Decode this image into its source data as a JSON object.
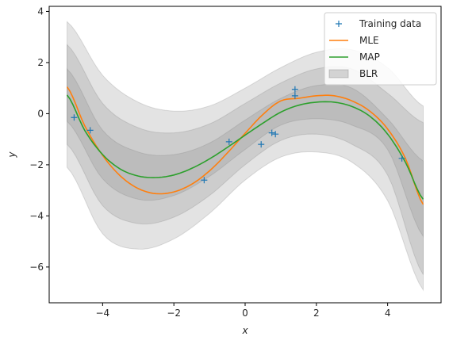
{
  "chart_data": {
    "type": "line",
    "title": "",
    "xlabel": "x",
    "ylabel": "y",
    "xlim": [
      -5.5,
      5.5
    ],
    "ylim": [
      -7.4,
      4.2
    ],
    "xticks": [
      -4,
      -2,
      0,
      2,
      4
    ],
    "yticks": [
      4,
      2,
      0,
      -2,
      -4,
      -6
    ],
    "xtick_labels": [
      "−4",
      "−2",
      "0",
      "2",
      "4"
    ],
    "ytick_labels": [
      "4",
      "2",
      "0",
      "−2",
      "−4",
      "−6"
    ],
    "grid": false,
    "legend_position": "top-right",
    "series": [
      {
        "name": "Training data",
        "kind": "scatter",
        "marker": "+",
        "color": "#1f77b4",
        "points": [
          [
            -4.8,
            -0.15
          ],
          [
            -4.35,
            -0.65
          ],
          [
            -1.15,
            -2.6
          ],
          [
            -0.45,
            -1.1
          ],
          [
            0.45,
            -1.2
          ],
          [
            0.75,
            -0.75
          ],
          [
            0.85,
            -0.8
          ],
          [
            1.4,
            0.95
          ],
          [
            1.4,
            0.7
          ],
          [
            4.4,
            -1.75
          ]
        ]
      },
      {
        "name": "MLE",
        "kind": "line",
        "color": "#ff7f0e",
        "x": [
          -5.0,
          -4.5,
          -4.0,
          -3.5,
          -3.0,
          -2.5,
          -2.0,
          -1.5,
          -1.0,
          -0.5,
          0.0,
          0.5,
          1.0,
          1.5,
          2.0,
          2.5,
          3.0,
          3.5,
          4.0,
          4.5,
          5.0
        ],
        "y": [
          1.05,
          -0.48,
          -1.63,
          -2.44,
          -2.93,
          -3.13,
          -3.06,
          -2.76,
          -2.24,
          -1.54,
          -0.77,
          -0.03,
          0.5,
          0.6,
          0.7,
          0.7,
          0.5,
          0.1,
          -0.6,
          -1.75,
          -3.55
        ]
      },
      {
        "name": "MAP",
        "kind": "line",
        "color": "#2ca02c",
        "x": [
          -5.0,
          -4.5,
          -4.0,
          -3.5,
          -3.0,
          -2.5,
          -2.0,
          -1.5,
          -1.0,
          -0.5,
          0.0,
          0.5,
          1.0,
          1.5,
          2.0,
          2.5,
          3.0,
          3.5,
          4.0,
          4.5,
          5.0
        ],
        "y": [
          0.73,
          -0.66,
          -1.6,
          -2.17,
          -2.44,
          -2.5,
          -2.4,
          -2.14,
          -1.77,
          -1.32,
          -0.84,
          -0.37,
          0.06,
          0.33,
          0.45,
          0.45,
          0.28,
          -0.1,
          -0.8,
          -1.9,
          -3.35
        ]
      },
      {
        "name": "BLR",
        "kind": "band",
        "color": "#7f7f7f",
        "bands": [
          {
            "x": [
              -5.0,
              -4.0,
              -3.0,
              -2.0,
              -1.0,
              0.0,
              1.0,
              2.0,
              3.0,
              4.0,
              5.0
            ],
            "upper": [
              3.6,
              1.5,
              0.45,
              0.1,
              0.3,
              1.0,
              1.8,
              2.4,
              2.5,
              1.8,
              0.3
            ],
            "lower": [
              -2.1,
              -4.7,
              -5.3,
              -4.9,
              -3.9,
              -2.6,
              -1.7,
              -1.5,
              -1.9,
              -3.4,
              -6.9
            ]
          },
          {
            "x": [
              -5.0,
              -4.0,
              -3.0,
              -2.0,
              -1.0,
              0.0,
              1.0,
              2.0,
              3.0,
              4.0,
              5.0
            ],
            "upper": [
              2.7,
              0.4,
              -0.55,
              -0.75,
              -0.4,
              0.4,
              1.2,
              1.75,
              1.75,
              0.8,
              -0.35
            ],
            "lower": [
              -1.2,
              -3.6,
              -4.3,
              -4.05,
              -3.2,
              -2.0,
              -1.05,
              -0.8,
              -1.2,
              -2.4,
              -6.3
            ]
          },
          {
            "x": [
              -5.0,
              -4.0,
              -3.0,
              -2.0,
              -1.0,
              0.0,
              1.0,
              2.0,
              3.0,
              4.0,
              5.0
            ],
            "upper": [
              1.75,
              -0.65,
              -1.5,
              -1.6,
              -1.15,
              -0.25,
              0.6,
              1.1,
              1.0,
              -0.2,
              -1.85
            ],
            "lower": [
              -0.3,
              -2.55,
              -3.35,
              -3.2,
              -2.45,
              -1.4,
              -0.45,
              -0.2,
              -0.45,
              -1.4,
              -4.8
            ]
          }
        ]
      }
    ],
    "legend": [
      {
        "label": "Training data",
        "marker": "+",
        "color": "#1f77b4"
      },
      {
        "label": "MLE",
        "marker": "line",
        "color": "#ff7f0e"
      },
      {
        "label": "MAP",
        "marker": "line",
        "color": "#2ca02c"
      },
      {
        "label": "BLR",
        "marker": "patch",
        "color": "#7f7f7f"
      }
    ]
  }
}
